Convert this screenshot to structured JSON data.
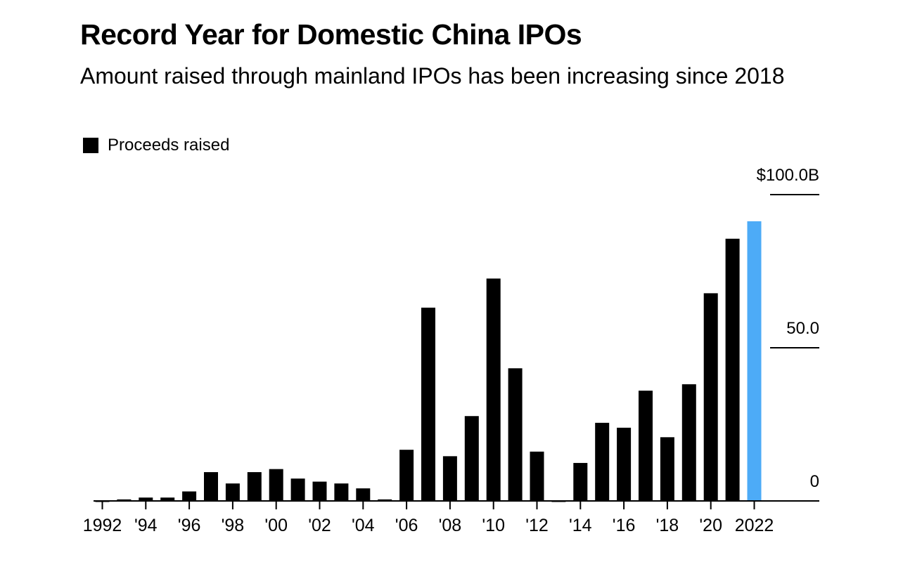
{
  "chart_data": {
    "type": "bar",
    "title": "Record Year for Domestic China IPOs",
    "subtitle": "Amount raised through mainland IPOs has been increasing since 2018",
    "legend": [
      {
        "label": "Proceeds raised",
        "color": "#000000"
      }
    ],
    "legend_position": "top-left",
    "xlabel": "",
    "ylabel": "",
    "ylim": [
      0,
      100
    ],
    "y_ticks": [
      {
        "value": 0,
        "label": "0"
      },
      {
        "value": 50,
        "label": "50.0"
      },
      {
        "value": 100,
        "label": "$100.0B"
      }
    ],
    "y_axis_side": "right",
    "categories": [
      1992,
      1993,
      1994,
      1995,
      1996,
      1997,
      1998,
      1999,
      2000,
      2001,
      2002,
      2003,
      2004,
      2005,
      2006,
      2007,
      2008,
      2009,
      2010,
      2011,
      2012,
      2013,
      2014,
      2015,
      2016,
      2017,
      2018,
      2019,
      2020,
      2021,
      2022
    ],
    "x_ticks": [
      {
        "year": 1992,
        "label": "1992"
      },
      {
        "year": 1994,
        "label": "'94"
      },
      {
        "year": 1996,
        "label": "'96"
      },
      {
        "year": 1998,
        "label": "'98"
      },
      {
        "year": 2000,
        "label": "'00"
      },
      {
        "year": 2002,
        "label": "'02"
      },
      {
        "year": 2004,
        "label": "'04"
      },
      {
        "year": 2006,
        "label": "'06"
      },
      {
        "year": 2008,
        "label": "'08"
      },
      {
        "year": 2010,
        "label": "'10"
      },
      {
        "year": 2012,
        "label": "'12"
      },
      {
        "year": 2014,
        "label": "'14"
      },
      {
        "year": 2016,
        "label": "'16"
      },
      {
        "year": 2018,
        "label": "'18"
      },
      {
        "year": 2020,
        "label": "'20"
      },
      {
        "year": 2022,
        "label": "2022"
      }
    ],
    "series": [
      {
        "name": "Proceeds raised",
        "unit": "USD billions",
        "values": [
          -0.2,
          0.5,
          1.1,
          1.1,
          3.1,
          9.4,
          5.7,
          9.4,
          10.4,
          7.3,
          6.3,
          5.7,
          4.1,
          0.5,
          16.7,
          63.1,
          14.6,
          27.7,
          72.6,
          43.3,
          16.1,
          -0.3,
          12.4,
          25.5,
          23.9,
          36.0,
          20.8,
          38.1,
          67.8,
          85.6,
          91.3
        ]
      }
    ],
    "highlight": {
      "year": 2022,
      "color": "#4dabf7"
    },
    "bar_color": "#000000",
    "grid": false
  }
}
